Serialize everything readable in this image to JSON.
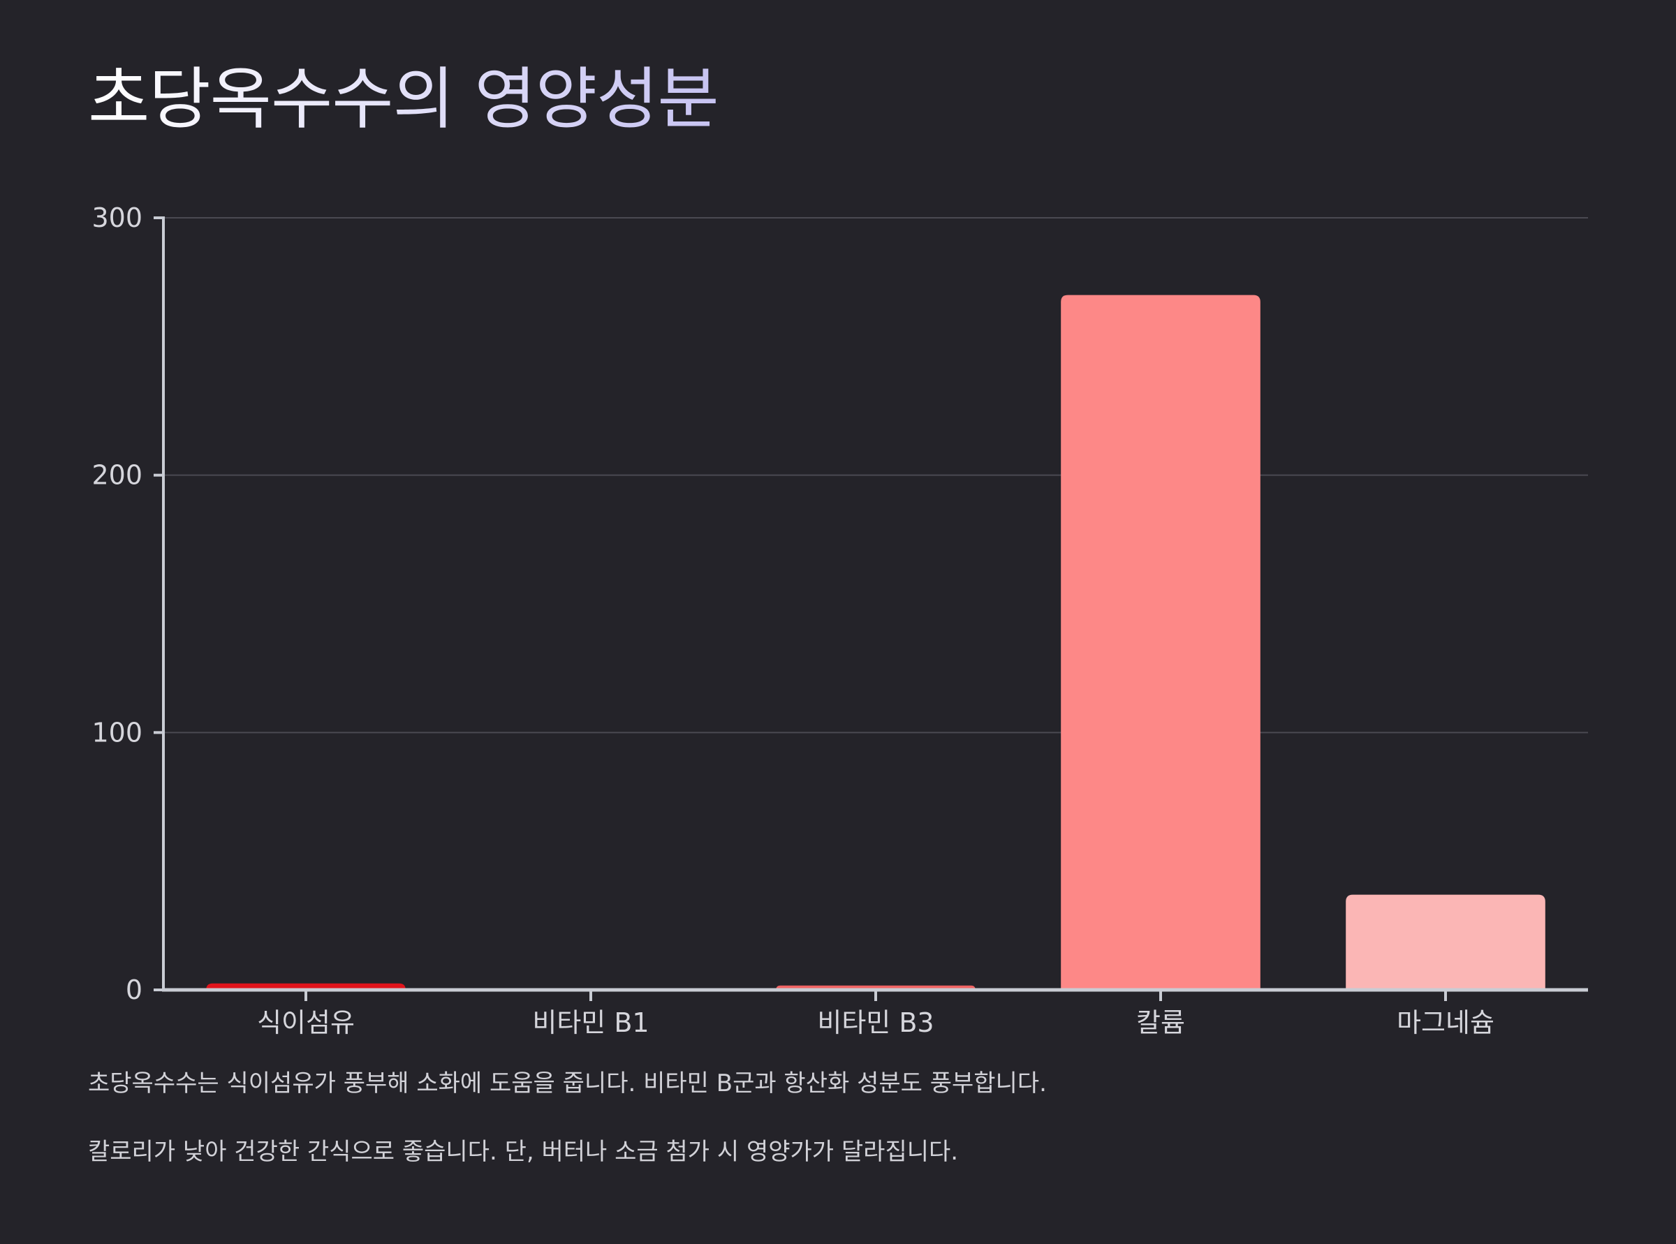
{
  "title": "초당옥수수의 영양성분",
  "colors": {
    "background": "#242329",
    "title_gradient_start": "#ffffff",
    "title_gradient_end": "#c7c3f2",
    "axis": "#c9ccd4",
    "grid": "#4a4a52"
  },
  "chart_data": {
    "type": "bar",
    "title": "",
    "xlabel": "",
    "ylabel": "",
    "categories": [
      "식이섬유",
      "비타민 B1",
      "비타민 B3",
      "칼륨",
      "마그네슘"
    ],
    "values": [
      2.5,
      0.2,
      1.7,
      270,
      37
    ],
    "bar_colors": [
      "#e0141c",
      "#f03c3c",
      "#f06464",
      "#fd8887",
      "#fbb6b5"
    ],
    "ylim": [
      0,
      300
    ],
    "yticks": [
      "0",
      "100",
      "200",
      "300"
    ],
    "grid": true,
    "legend": "none"
  },
  "notes": [
    "초당옥수수는 식이섬유가 풍부해 소화에 도움을 줍니다. 비타민 B군과 항산화 성분도 풍부합니다.",
    "칼로리가 낮아 건강한 간식으로 좋습니다. 단, 버터나 소금 첨가 시 영양가가 달라집니다."
  ]
}
